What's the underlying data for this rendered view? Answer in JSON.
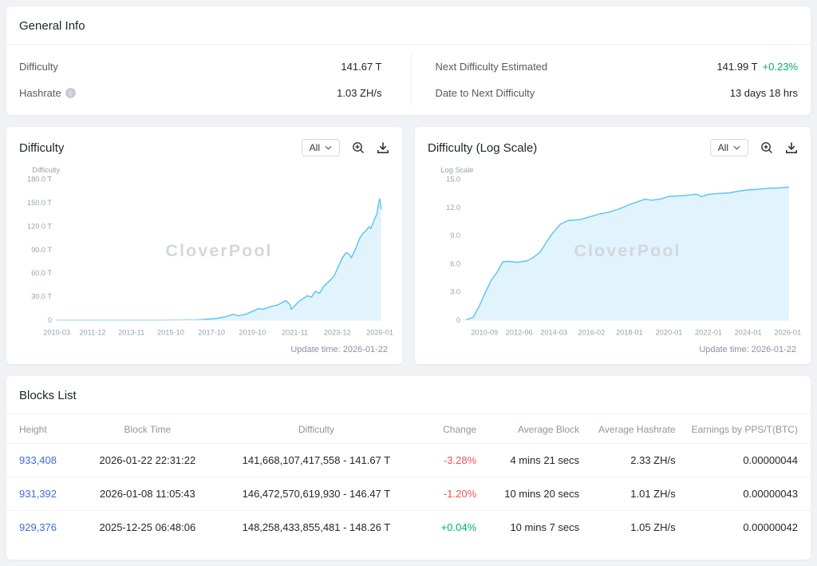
{
  "colors": {
    "link_blue": "#3e6be0",
    "positive_green": "#00b26a",
    "negative_red": "#ee5350",
    "chart_line": "#5bc5ef",
    "chart_fill": "#e1f3fc"
  },
  "icons": {
    "info_glyph": "i",
    "hashrate_info": "info-icon",
    "range_chevron": "chevron-down-icon",
    "zoom": "zoom-in-icon",
    "download": "download-icon"
  },
  "general_info": {
    "title": "General Info",
    "left": [
      {
        "label": "Difficulty",
        "value": "141.67 T"
      },
      {
        "label": "Hashrate",
        "value": "1.03 ZH/s"
      }
    ],
    "right": [
      {
        "label": "Next Difficulty Estimated",
        "value": "141.99 T",
        "delta": "+0.23%"
      },
      {
        "label": "Date to Next Difficulty",
        "value": "13 days 18 hrs"
      }
    ]
  },
  "chart_data": [
    {
      "type": "area",
      "title": "Difficulty",
      "axis_label": "Difficulty",
      "range_label": "All",
      "watermark": "CloverPool",
      "update_time": "Update time: 2026-01-22",
      "ylim": [
        0,
        180
      ],
      "yticks": [
        {
          "v": 180,
          "label": "180.0 T"
        },
        {
          "v": 150,
          "label": "150.0 T"
        },
        {
          "v": 120,
          "label": "120.0 T"
        },
        {
          "v": 90,
          "label": "90.0 T"
        },
        {
          "v": 60,
          "label": "60.0 T"
        },
        {
          "v": 30,
          "label": "30.0 T"
        },
        {
          "v": 0,
          "label": "0"
        }
      ],
      "xticks": [
        {
          "x": 0.0,
          "label": "2010-03"
        },
        {
          "x": 0.11,
          "label": "2011-12"
        },
        {
          "x": 0.23,
          "label": "2013-11"
        },
        {
          "x": 0.351,
          "label": "2015-10"
        },
        {
          "x": 0.477,
          "label": "2017-10"
        },
        {
          "x": 0.603,
          "label": "2019-10"
        },
        {
          "x": 0.734,
          "label": "2021-11"
        },
        {
          "x": 0.865,
          "label": "2023-12"
        },
        {
          "x": 0.996,
          "label": "2026-01"
        }
      ],
      "unit": "T",
      "points": [
        [
          0,
          0
        ],
        [
          0.18,
          0.001
        ],
        [
          0.305,
          0.05
        ],
        [
          0.368,
          0.15
        ],
        [
          0.431,
          0.4
        ],
        [
          0.488,
          1.9
        ],
        [
          0.52,
          4.3
        ],
        [
          0.545,
          7.4
        ],
        [
          0.558,
          5.6
        ],
        [
          0.583,
          7.5
        ],
        [
          0.608,
          12
        ],
        [
          0.621,
          14.7
        ],
        [
          0.637,
          13.9
        ],
        [
          0.659,
          17.3
        ],
        [
          0.678,
          19
        ],
        [
          0.687,
          20.6
        ],
        [
          0.706,
          25
        ],
        [
          0.719,
          19.9
        ],
        [
          0.723,
          13.7
        ],
        [
          0.734,
          18.4
        ],
        [
          0.747,
          24.2
        ],
        [
          0.76,
          27.5
        ],
        [
          0.772,
          31.2
        ],
        [
          0.785,
          29.5
        ],
        [
          0.798,
          36.8
        ],
        [
          0.81,
          34.1
        ],
        [
          0.823,
          43.1
        ],
        [
          0.839,
          49.5
        ],
        [
          0.854,
          55.6
        ],
        [
          0.867,
          67.3
        ],
        [
          0.88,
          79.3
        ],
        [
          0.892,
          86.4
        ],
        [
          0.902,
          83.7
        ],
        [
          0.908,
          79.5
        ],
        [
          0.921,
          90.7
        ],
        [
          0.933,
          103.9
        ],
        [
          0.943,
          110.5
        ],
        [
          0.952,
          113.8
        ],
        [
          0.962,
          119.1
        ],
        [
          0.968,
          116.9
        ],
        [
          0.977,
          126.3
        ],
        [
          0.987,
          136
        ],
        [
          0.993,
          150.8
        ],
        [
          0.996,
          155
        ],
        [
          0.999,
          146.4
        ],
        [
          1,
          141.67
        ]
      ]
    },
    {
      "type": "area",
      "title": "Difficulty (Log Scale)",
      "axis_label": "Log Scale",
      "range_label": "All",
      "watermark": "CloverPool",
      "update_time": "Update time: 2026-01-22",
      "ylim": [
        0,
        15
      ],
      "yticks": [
        {
          "v": 15,
          "label": "15.0"
        },
        {
          "v": 12,
          "label": "12.0"
        },
        {
          "v": 9,
          "label": "9.0"
        },
        {
          "v": 6,
          "label": "6.0"
        },
        {
          "v": 3,
          "label": "3.0"
        },
        {
          "v": 0,
          "label": "0"
        }
      ],
      "xticks": [
        {
          "x": 0.059,
          "label": "2010-09"
        },
        {
          "x": 0.166,
          "label": "2012-06"
        },
        {
          "x": 0.273,
          "label": "2014-03"
        },
        {
          "x": 0.389,
          "label": "2016-02"
        },
        {
          "x": 0.506,
          "label": "2018-01"
        },
        {
          "x": 0.628,
          "label": "2020-01"
        },
        {
          "x": 0.75,
          "label": "2022-01"
        },
        {
          "x": 0.872,
          "label": "2024-01"
        },
        {
          "x": 0.994,
          "label": "2026-01"
        }
      ],
      "unit": "log10",
      "points": [
        [
          0,
          0
        ],
        [
          0.024,
          0.3
        ],
        [
          0.043,
          1.5
        ],
        [
          0.061,
          2.9
        ],
        [
          0.079,
          4.2
        ],
        [
          0.098,
          5.1
        ],
        [
          0.116,
          6.2
        ],
        [
          0.134,
          6.25
        ],
        [
          0.159,
          6.15
        ],
        [
          0.189,
          6.3
        ],
        [
          0.207,
          6.6
        ],
        [
          0.232,
          7.3
        ],
        [
          0.25,
          8.3
        ],
        [
          0.268,
          9.2
        ],
        [
          0.293,
          10.2
        ],
        [
          0.317,
          10.6
        ],
        [
          0.354,
          10.7
        ],
        [
          0.384,
          11
        ],
        [
          0.415,
          11.3
        ],
        [
          0.445,
          11.5
        ],
        [
          0.476,
          11.85
        ],
        [
          0.506,
          12.3
        ],
        [
          0.555,
          12.87
        ],
        [
          0.573,
          12.76
        ],
        [
          0.604,
          12.9
        ],
        [
          0.628,
          13.17
        ],
        [
          0.665,
          13.23
        ],
        [
          0.689,
          13.3
        ],
        [
          0.713,
          13.4
        ],
        [
          0.728,
          13.14
        ],
        [
          0.75,
          13.38
        ],
        [
          0.78,
          13.48
        ],
        [
          0.811,
          13.53
        ],
        [
          0.841,
          13.72
        ],
        [
          0.872,
          13.86
        ],
        [
          0.902,
          13.92
        ],
        [
          0.933,
          14.03
        ],
        [
          0.963,
          14.07
        ],
        [
          0.998,
          14.15
        ]
      ]
    }
  ],
  "blocks": {
    "title": "Blocks List",
    "columns": [
      "Height",
      "Block Time",
      "Difficulty",
      "Change",
      "Average Block",
      "Average Hashrate",
      "Earnings by PPS/T(BTC)"
    ],
    "rows": [
      {
        "height": "933,408",
        "time": "2026-01-22 22:31:22",
        "difficulty": "141,668,107,417,558 - 141.67 T",
        "change": "-3.28%",
        "avg_block": "4 mins 21 secs",
        "avg_hashrate": "2.33 ZH/s",
        "earnings": "0.00000044"
      },
      {
        "height": "931,392",
        "time": "2026-01-08 11:05:43",
        "difficulty": "146,472,570,619,930 - 146.47 T",
        "change": "-1.20%",
        "avg_block": "10 mins 20 secs",
        "avg_hashrate": "1.01 ZH/s",
        "earnings": "0.00000043"
      },
      {
        "height": "929,376",
        "time": "2025-12-25 06:48:06",
        "difficulty": "148,258,433,855,481 - 148.26 T",
        "change": "+0.04%",
        "avg_block": "10 mins 7 secs",
        "avg_hashrate": "1.05 ZH/s",
        "earnings": "0.00000042"
      }
    ]
  }
}
